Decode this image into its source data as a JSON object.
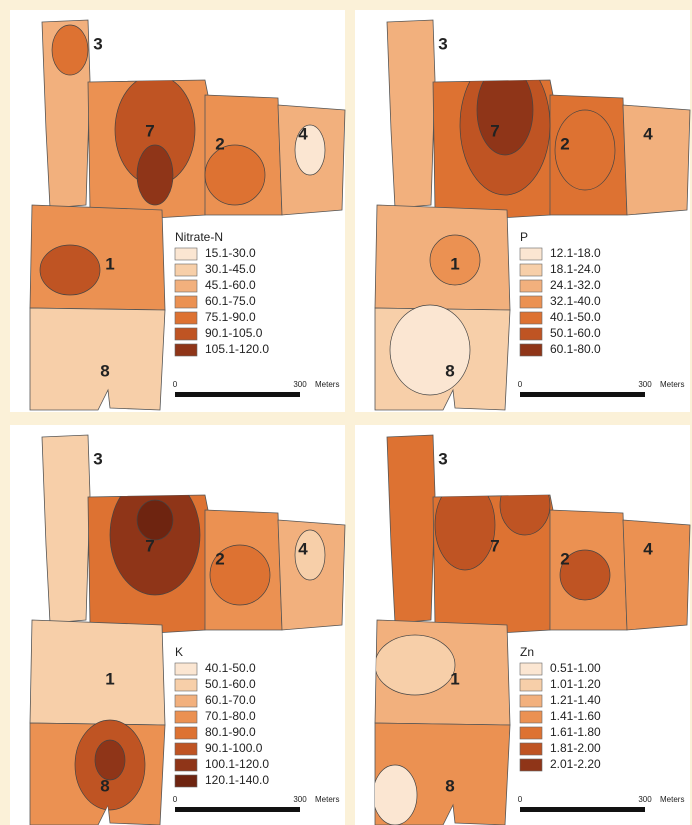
{
  "panels": [
    {
      "legend_title": "Nitrate-N",
      "classes": [
        "15.1-30.0",
        "30.1-45.0",
        "45.1-60.0",
        "60.1-75.0",
        "75.1-90.0",
        "90.1-105.0",
        "105.1-120.0"
      ],
      "field_labels": [
        "3",
        "7",
        "2",
        "4",
        "1",
        "8"
      ],
      "scale": {
        "start": "0",
        "end": "300",
        "unit": "Meters"
      }
    },
    {
      "legend_title": "P",
      "classes": [
        "12.1-18.0",
        "18.1-24.0",
        "24.1-32.0",
        "32.1-40.0",
        "40.1-50.0",
        "50.1-60.0",
        "60.1-80.0"
      ],
      "field_labels": [
        "3",
        "7",
        "2",
        "4",
        "1",
        "8"
      ],
      "scale": {
        "start": "0",
        "end": "300",
        "unit": "Meters"
      }
    },
    {
      "legend_title": "K",
      "classes": [
        "40.1-50.0",
        "50.1-60.0",
        "60.1-70.0",
        "70.1-80.0",
        "80.1-90.0",
        "90.1-100.0",
        "100.1-120.0",
        "120.1-140.0"
      ],
      "field_labels": [
        "3",
        "7",
        "2",
        "4",
        "1",
        "8"
      ],
      "scale": {
        "start": "0",
        "end": "300",
        "unit": "Meters"
      }
    },
    {
      "legend_title": "Zn",
      "classes": [
        "0.51-1.00",
        "1.01-1.20",
        "1.21-1.40",
        "1.41-1.60",
        "1.61-1.80",
        "1.81-2.00",
        "2.01-2.20"
      ],
      "field_labels": [
        "3",
        "7",
        "2",
        "4",
        "1",
        "8"
      ],
      "scale": {
        "start": "0",
        "end": "300",
        "unit": "Meters"
      }
    }
  ]
}
